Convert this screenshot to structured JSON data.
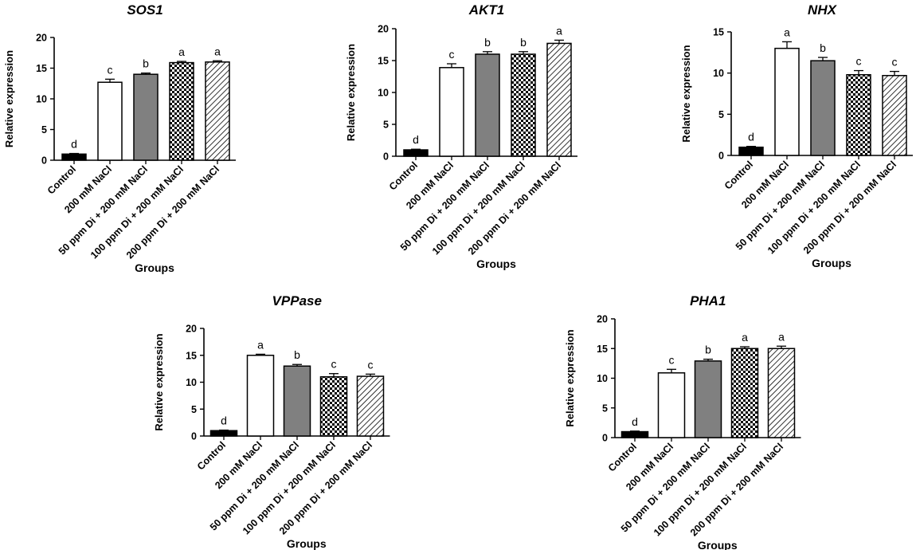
{
  "colors": {
    "axis": "#000000",
    "solid_black": "#000000",
    "white": "#ffffff",
    "gray": "#808080"
  },
  "chart_data": [
    {
      "type": "bar",
      "title": "SOS1",
      "xlabel": "Groups",
      "ylabel": "Relative expression",
      "ylim": [
        0,
        20
      ],
      "yticks": [
        0,
        5,
        10,
        15,
        20
      ],
      "categories": [
        "Control",
        "200 mM NaCl",
        "50 ppm Di + 200 mM NaCl",
        "100 ppm Di + 200 mM NaCl",
        "200 ppm Di + 200 mM NaCl"
      ],
      "values": [
        1,
        12.7,
        14,
        15.9,
        16
      ],
      "errors": [
        0.1,
        0.5,
        0.2,
        0.2,
        0.2
      ],
      "letters": [
        "d",
        "c",
        "b",
        "a",
        "a"
      ],
      "fills": [
        "black",
        "white",
        "gray",
        "checker",
        "hatch"
      ]
    },
    {
      "type": "bar",
      "title": "AKT1",
      "xlabel": "Groups",
      "ylabel": "Relative expression",
      "ylim": [
        0,
        20
      ],
      "yticks": [
        0,
        5,
        10,
        15,
        20
      ],
      "categories": [
        "Control",
        "200 mM NaCl",
        "50 ppm Di + 200 mM NaCl",
        "100 ppm Di + 200 mM NaCl",
        "200 ppm Di + 200 mM NaCl"
      ],
      "values": [
        1,
        13.9,
        16,
        16,
        17.7
      ],
      "errors": [
        0.1,
        0.6,
        0.4,
        0.4,
        0.5
      ],
      "letters": [
        "d",
        "c",
        "b",
        "b",
        "a"
      ],
      "fills": [
        "black",
        "white",
        "gray",
        "checker",
        "hatch"
      ]
    },
    {
      "type": "bar",
      "title": "NHX",
      "xlabel": "Groups",
      "ylabel": "Relative expression",
      "ylim": [
        0,
        15
      ],
      "yticks": [
        0,
        5,
        10,
        15
      ],
      "categories": [
        "Control",
        "200 mM NaCl",
        "50 ppm Di + 200 mM NaCl",
        "100 ppm Di + 200 mM NaCl",
        "200 ppm Di + 200 mM NaCl"
      ],
      "values": [
        1,
        13,
        11.5,
        9.8,
        9.7
      ],
      "errors": [
        0.1,
        0.8,
        0.4,
        0.5,
        0.5
      ],
      "letters": [
        "d",
        "a",
        "b",
        "c",
        "c"
      ],
      "fills": [
        "black",
        "white",
        "gray",
        "checker",
        "hatch"
      ]
    },
    {
      "type": "bar",
      "title": "VPPase",
      "xlabel": "Groups",
      "ylabel": "Relative expression",
      "ylim": [
        0,
        20
      ],
      "yticks": [
        0,
        5,
        10,
        15,
        20
      ],
      "categories": [
        "Control",
        "200 mM NaCl",
        "50 ppm Di + 200 mM NaCl",
        "100 ppm Di + 200 mM NaCl",
        "200 ppm Di + 200 mM NaCl"
      ],
      "values": [
        1,
        15,
        13,
        11,
        11.1
      ],
      "errors": [
        0.1,
        0.2,
        0.3,
        0.6,
        0.4
      ],
      "letters": [
        "d",
        "a",
        "b",
        "c",
        "c"
      ],
      "fills": [
        "black",
        "white",
        "gray",
        "checker",
        "hatch"
      ]
    },
    {
      "type": "bar",
      "title": "PHA1",
      "xlabel": "Groups",
      "ylabel": "Relative expression",
      "ylim": [
        0,
        20
      ],
      "yticks": [
        0,
        5,
        10,
        15,
        20
      ],
      "categories": [
        "Control",
        "200 mM NaCl",
        "50 ppm Di + 200 mM NaCl",
        "100 ppm Di + 200 mM NaCl",
        "200 ppm Di + 200 mM NaCl"
      ],
      "values": [
        1,
        10.9,
        12.9,
        15,
        15
      ],
      "errors": [
        0.1,
        0.6,
        0.3,
        0.3,
        0.4
      ],
      "letters": [
        "d",
        "c",
        "b",
        "a",
        "a"
      ],
      "fills": [
        "black",
        "white",
        "gray",
        "checker",
        "hatch"
      ]
    }
  ]
}
